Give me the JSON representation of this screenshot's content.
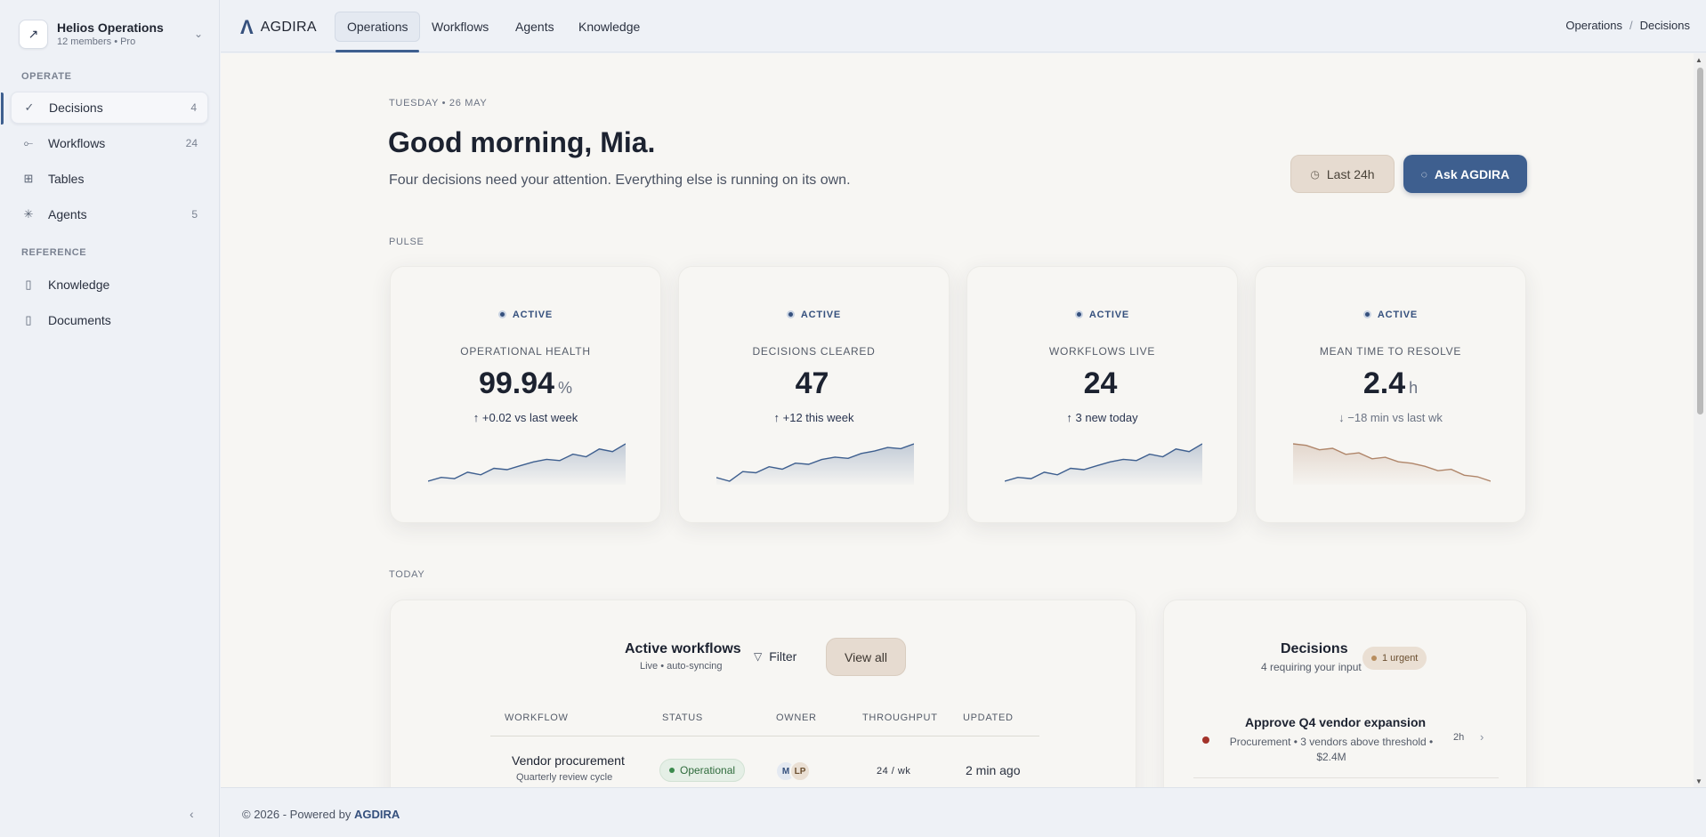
{
  "org": {
    "name": "Helios Operations",
    "sub": "12 members • Pro",
    "logo_glyph": "↗"
  },
  "sidebar": {
    "section_operate": "OPERATE",
    "section_reference": "REFERENCE",
    "items": [
      {
        "label": "Decisions",
        "count": "4",
        "icon": "check-icon"
      },
      {
        "label": "Workflows",
        "count": "24",
        "icon": "workflow-icon"
      },
      {
        "label": "Tables",
        "count": "",
        "icon": "table-icon"
      },
      {
        "label": "Agents",
        "count": "5",
        "icon": "agents-icon"
      },
      {
        "label": "Knowledge",
        "count": "",
        "icon": "file-icon"
      },
      {
        "label": "Documents",
        "count": "",
        "icon": "file-icon"
      }
    ]
  },
  "topbar": {
    "brand": "AGDIRA",
    "tabs": [
      "Operations",
      "Workflows",
      "Agents",
      "Knowledge"
    ],
    "breadcrumb": [
      "Operations",
      "Decisions"
    ]
  },
  "main": {
    "date": "TUESDAY • 26 MAY",
    "greeting": "Good morning, Mia.",
    "subline": "Four decisions need your attention. Everything else is running on its own.",
    "btn_last": "Last 24h",
    "btn_ask": "Ask AGDIRA",
    "pulse_label": "PULSE",
    "today_label": "TODAY"
  },
  "cards": [
    {
      "badge": "ACTIVE",
      "label": "OPERATIONAL HEALTH",
      "value": "99.94",
      "unit": "%",
      "delta": "↑  +0.02 vs last week",
      "trend": "up",
      "spark": [
        3,
        6,
        5,
        10,
        8,
        13,
        12,
        15,
        18,
        20,
        19,
        24,
        22,
        28,
        26,
        32
      ]
    },
    {
      "badge": "ACTIVE",
      "label": "DECISIONS CLEARED",
      "value": "47",
      "unit": "",
      "delta": "↑  +12 this week",
      "trend": "up",
      "spark": [
        5,
        2,
        10,
        9,
        14,
        12,
        17,
        16,
        20,
        22,
        21,
        25,
        27,
        30,
        29,
        33
      ]
    },
    {
      "badge": "ACTIVE",
      "label": "WORKFLOWS LIVE",
      "value": "24",
      "unit": "",
      "delta": "↑  3 new today",
      "trend": "up",
      "spark": [
        3,
        6,
        5,
        10,
        8,
        13,
        12,
        15,
        18,
        20,
        19,
        24,
        22,
        28,
        26,
        32
      ]
    },
    {
      "badge": "ACTIVE",
      "label": "MEAN TIME TO RESOLVE",
      "value": "2.4",
      "unit": "h",
      "delta": "↓  −18 min vs last wk",
      "trend": "down",
      "spark": [
        30,
        29,
        26,
        27,
        23,
        24,
        20,
        21,
        18,
        17,
        15,
        12,
        13,
        9,
        8,
        5
      ]
    }
  ],
  "workflows": {
    "title": "Active workflows",
    "sub": "Live • auto-syncing",
    "filter": "Filter",
    "view_all": "View all",
    "headers": [
      "WORKFLOW",
      "STATUS",
      "OWNER",
      "THROUGHPUT",
      "UPDATED"
    ],
    "rows": [
      {
        "name": "Vendor procurement",
        "desc": "Quarterly review cycle",
        "status": "Operational",
        "owners": [
          "M",
          "LP"
        ],
        "throughput": "24  /  wk",
        "updated": "2 min ago"
      }
    ]
  },
  "decisions": {
    "title": "Decisions",
    "sub": "4 requiring your input",
    "urgent": "1 urgent",
    "items": [
      {
        "title": "Approve Q4 vendor expansion",
        "desc": "Procurement • 3 vendors above threshold • $2.4M",
        "age": "2h"
      }
    ]
  },
  "footer": {
    "prefix": "© 2026 - Powered by",
    "brand": "AGDIRA"
  },
  "colors": {
    "accent": "#3e5f8f",
    "sand": "#e6dbd0",
    "ok": "#3b8a4d",
    "urgent": "#a3332a"
  }
}
